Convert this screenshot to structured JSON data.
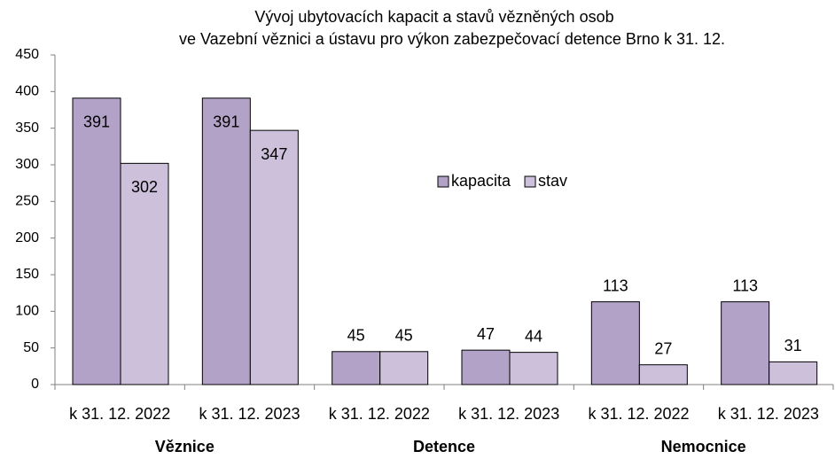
{
  "chart_data": {
    "type": "bar",
    "title": [
      "Vývoj ubytovacích kapacit a stavů vězněných osob",
      "ve Vazební věznici a ústavu pro výkon zabezpečovací detence Brno k 31. 12."
    ],
    "categories": [
      "k 31. 12. 2022",
      "k 31. 12. 2023",
      "k 31. 12. 2022",
      "k 31. 12. 2023",
      "k 31. 12. 2022",
      "k 31. 12. 2023"
    ],
    "groups": [
      "Věznice",
      "Detence",
      "Nemocnice"
    ],
    "series": [
      {
        "name": "kapacita",
        "color": "#b3a2c7",
        "values": [
          391,
          391,
          45,
          47,
          113,
          113
        ]
      },
      {
        "name": "stav",
        "color": "#ccc0da",
        "values": [
          302,
          347,
          45,
          44,
          27,
          31
        ]
      }
    ],
    "ylim": [
      0,
      450
    ],
    "yticks": [
      0,
      50,
      100,
      150,
      200,
      250,
      300,
      350,
      400,
      450
    ],
    "grid": false,
    "legend": "center"
  }
}
